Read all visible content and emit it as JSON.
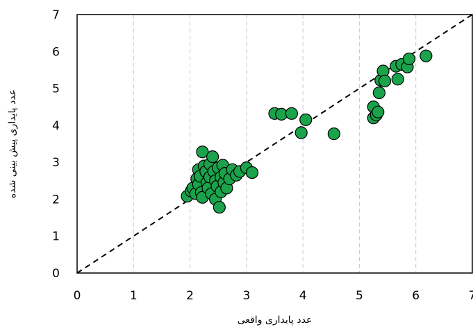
{
  "chart_data": {
    "type": "scatter",
    "xlabel": "عدد پایداری واقعی",
    "ylabel": "عدد پایداری پیش بینی شده",
    "xlim": [
      0,
      7
    ],
    "ylim": [
      0,
      7
    ],
    "x_ticks": [
      "0",
      "1",
      "2",
      "3",
      "4",
      "5",
      "6",
      "7"
    ],
    "y_ticks": [
      "0",
      "1",
      "2",
      "3",
      "4",
      "5",
      "6",
      "7"
    ],
    "grid": "vertical dashed",
    "reference_line": "y = x (dashed)",
    "marker_color": "#1aa34a",
    "marker_edge": "#000000",
    "points": [
      {
        "x": 1.95,
        "y": 2.08
      },
      {
        "x": 2.02,
        "y": 2.22
      },
      {
        "x": 2.05,
        "y": 2.3
      },
      {
        "x": 2.1,
        "y": 2.15
      },
      {
        "x": 2.12,
        "y": 2.55
      },
      {
        "x": 2.15,
        "y": 2.8
      },
      {
        "x": 2.15,
        "y": 2.4
      },
      {
        "x": 2.18,
        "y": 2.62
      },
      {
        "x": 2.2,
        "y": 2.18
      },
      {
        "x": 2.22,
        "y": 3.28
      },
      {
        "x": 2.22,
        "y": 2.05
      },
      {
        "x": 2.25,
        "y": 2.9
      },
      {
        "x": 2.28,
        "y": 2.75
      },
      {
        "x": 2.3,
        "y": 2.45
      },
      {
        "x": 2.32,
        "y": 2.3
      },
      {
        "x": 2.35,
        "y": 2.95
      },
      {
        "x": 2.35,
        "y": 2.6
      },
      {
        "x": 2.38,
        "y": 2.15
      },
      {
        "x": 2.4,
        "y": 3.15
      },
      {
        "x": 2.42,
        "y": 2.75
      },
      {
        "x": 2.45,
        "y": 2.0
      },
      {
        "x": 2.45,
        "y": 2.5
      },
      {
        "x": 2.48,
        "y": 2.35
      },
      {
        "x": 2.5,
        "y": 2.85
      },
      {
        "x": 2.52,
        "y": 1.78
      },
      {
        "x": 2.55,
        "y": 2.6
      },
      {
        "x": 2.55,
        "y": 2.2
      },
      {
        "x": 2.58,
        "y": 2.92
      },
      {
        "x": 2.6,
        "y": 2.45
      },
      {
        "x": 2.62,
        "y": 2.7
      },
      {
        "x": 2.65,
        "y": 2.3
      },
      {
        "x": 2.7,
        "y": 2.55
      },
      {
        "x": 2.75,
        "y": 2.8
      },
      {
        "x": 2.82,
        "y": 2.65
      },
      {
        "x": 2.88,
        "y": 2.75
      },
      {
        "x": 3.0,
        "y": 2.85
      },
      {
        "x": 3.1,
        "y": 2.72
      },
      {
        "x": 3.5,
        "y": 4.32
      },
      {
        "x": 3.62,
        "y": 4.3
      },
      {
        "x": 3.8,
        "y": 4.32
      },
      {
        "x": 3.97,
        "y": 3.8
      },
      {
        "x": 4.05,
        "y": 4.15
      },
      {
        "x": 4.55,
        "y": 3.77
      },
      {
        "x": 5.25,
        "y": 4.5
      },
      {
        "x": 5.25,
        "y": 4.2
      },
      {
        "x": 5.3,
        "y": 4.28
      },
      {
        "x": 5.33,
        "y": 4.36
      },
      {
        "x": 5.35,
        "y": 4.88
      },
      {
        "x": 5.38,
        "y": 5.22
      },
      {
        "x": 5.42,
        "y": 5.47
      },
      {
        "x": 5.45,
        "y": 5.2
      },
      {
        "x": 5.65,
        "y": 5.6
      },
      {
        "x": 5.68,
        "y": 5.25
      },
      {
        "x": 5.75,
        "y": 5.65
      },
      {
        "x": 5.85,
        "y": 5.58
      },
      {
        "x": 5.88,
        "y": 5.8
      },
      {
        "x": 6.18,
        "y": 5.88
      }
    ]
  }
}
